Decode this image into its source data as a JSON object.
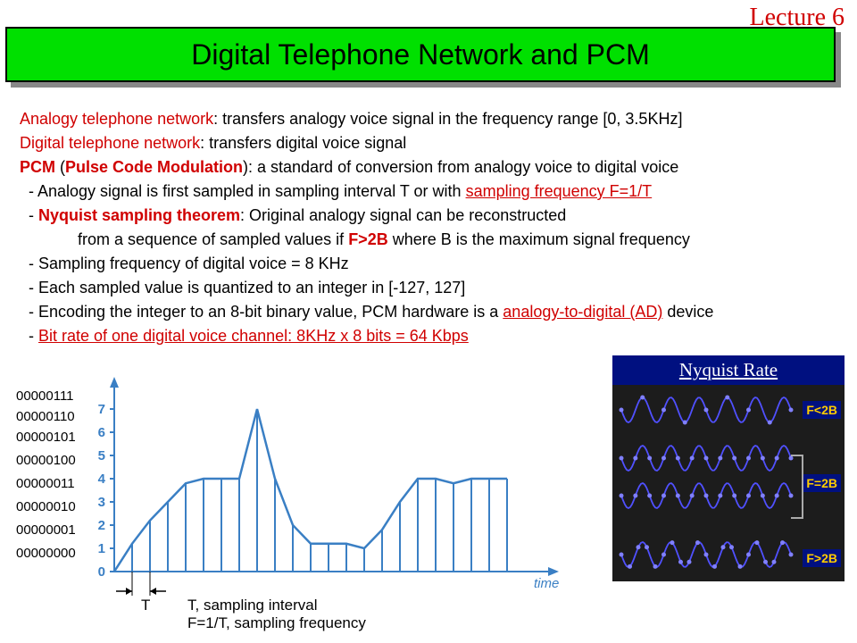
{
  "lecture": "Lecture 6",
  "title": "Digital Telephone Network and PCM",
  "lines": {
    "l1a": "Analogy telephone network",
    "l1b": ": transfers analogy voice signal in the frequency range [0, 3.5KHz]",
    "l2a": "Digital telephone network",
    "l2b": ": transfers digital voice signal",
    "l3a": "PCM",
    "l3b": " (",
    "l3c": "Pulse Code Modulation",
    "l3d": "): a standard of conversion from analogy voice to digital voice",
    "l4a": "  - Analogy signal is first sampled in sampling interval T or with ",
    "l4b": "sampling frequency F=1/T",
    "l5a": "  - ",
    "l5b": "Nyquist sampling theorem",
    "l5c": ": Original analogy signal can be reconstructed",
    "l6a": "             from a sequence of sampled values if ",
    "l6b": "F>2B",
    "l6c": " where B is the maximum signal frequency",
    "l7": "  - Sampling frequency of digital voice = 8 KHz",
    "l8": "  - Each sampled value is quantized to an integer in [-127, 127]",
    "l9a": "  - Encoding the integer to an 8-bit binary value, PCM hardware is a ",
    "l9b": "analogy-to-digital (AD)",
    "l9c": " device",
    "l10a": "  - ",
    "l10b": "Bit rate of one digital voice channel: 8KHz x 8 bits = 64 Kbps"
  },
  "binary_labels": [
    "00000111",
    "00000110",
    "00000101",
    "00000100",
    "00000011",
    "00000010",
    "00000001",
    "00000000"
  ],
  "chart": {
    "type": "line-with-samples",
    "y_ticks": [
      0,
      1,
      2,
      3,
      4,
      5,
      6,
      7
    ],
    "x_label": "time",
    "t_label": "T",
    "caption1": "T, sampling interval",
    "caption2": "F=1/T, sampling frequency",
    "line_color": "#3a7fc4",
    "axis_color": "#3a7fc4",
    "points_x": [
      0,
      20,
      40,
      60,
      80,
      100,
      120,
      140,
      160,
      180,
      200,
      220,
      240,
      260,
      280,
      300,
      320,
      340,
      360,
      380,
      400,
      420,
      440
    ],
    "points_y": [
      0,
      1.2,
      2.2,
      3.0,
      3.8,
      4.0,
      4.0,
      4.0,
      7.0,
      4.0,
      2.0,
      1.2,
      1.2,
      1.2,
      1.0,
      1.8,
      3.0,
      4.0,
      4.0,
      3.8,
      4.0,
      4.0,
      4.0
    ]
  },
  "nyquist": {
    "title": "Nyquist Rate",
    "labels": [
      "F<2B",
      "F=2B",
      "F>2B"
    ],
    "wave_color": "#5050ff",
    "dot_color": "#8080ff",
    "bg": "#1c1c1c"
  }
}
